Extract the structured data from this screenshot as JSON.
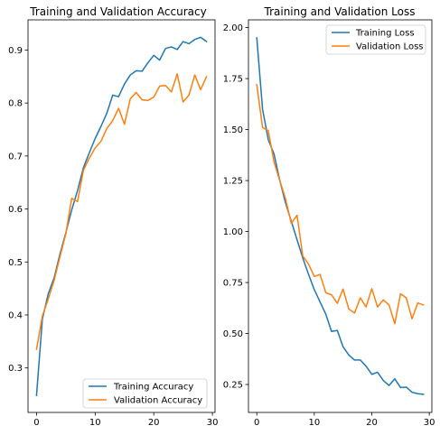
{
  "chart_data": [
    {
      "type": "line",
      "title": "Training and Validation Accuracy",
      "xlabel": "",
      "ylabel": "",
      "xlim": [
        -1.45,
        30.45
      ],
      "ylim": [
        0.216,
        0.957
      ],
      "xticks": [
        0,
        10,
        20,
        30
      ],
      "yticks": [
        0.3,
        0.4,
        0.5,
        0.6,
        0.7,
        0.8,
        0.9
      ],
      "ytick_labels": [
        "0.3",
        "0.4",
        "0.5",
        "0.6",
        "0.7",
        "0.8",
        "0.9"
      ],
      "grid": false,
      "legend_position": "lower-right",
      "x": [
        0,
        1,
        2,
        3,
        4,
        5,
        6,
        7,
        8,
        9,
        10,
        11,
        12,
        13,
        14,
        15,
        16,
        17,
        18,
        19,
        20,
        21,
        22,
        23,
        24,
        25,
        26,
        27,
        28,
        29
      ],
      "series": [
        {
          "name": "Training Accuracy",
          "color": "#1f77b4",
          "values": [
            0.248,
            0.392,
            0.44,
            0.47,
            0.515,
            0.555,
            0.598,
            0.635,
            0.678,
            0.706,
            0.733,
            0.756,
            0.781,
            0.815,
            0.812,
            0.836,
            0.853,
            0.861,
            0.86,
            0.876,
            0.89,
            0.881,
            0.903,
            0.906,
            0.901,
            0.916,
            0.912,
            0.92,
            0.924,
            0.916
          ]
        },
        {
          "name": "Validation Accuracy",
          "color": "#ff7f0e",
          "values": [
            0.335,
            0.398,
            0.43,
            0.465,
            0.51,
            0.553,
            0.62,
            0.614,
            0.673,
            0.696,
            0.715,
            0.728,
            0.752,
            0.767,
            0.79,
            0.76,
            0.808,
            0.82,
            0.806,
            0.805,
            0.811,
            0.832,
            0.833,
            0.821,
            0.855,
            0.802,
            0.815,
            0.853,
            0.825,
            0.85
          ]
        }
      ]
    },
    {
      "type": "line",
      "title": "Training and Validation Loss",
      "xlabel": "",
      "ylabel": "",
      "xlim": [
        -1.45,
        30.45
      ],
      "ylim": [
        0.113,
        2.038
      ],
      "xticks": [
        0,
        10,
        20,
        30
      ],
      "yticks": [
        0.25,
        0.5,
        0.75,
        1.0,
        1.25,
        1.5,
        1.75,
        2.0
      ],
      "ytick_labels": [
        "0.25",
        "0.50",
        "0.75",
        "1.00",
        "1.25",
        "1.50",
        "1.75",
        "2.00"
      ],
      "grid": false,
      "legend_position": "upper-right",
      "x": [
        0,
        1,
        2,
        3,
        4,
        5,
        6,
        7,
        8,
        9,
        10,
        11,
        12,
        13,
        14,
        15,
        16,
        17,
        18,
        19,
        20,
        21,
        22,
        23,
        24,
        25,
        26,
        27,
        28,
        29
      ],
      "series": [
        {
          "name": "Training Loss",
          "color": "#1f77b4",
          "values": [
            1.95,
            1.6,
            1.45,
            1.38,
            1.25,
            1.14,
            1.05,
            0.96,
            0.87,
            0.79,
            0.715,
            0.655,
            0.595,
            0.51,
            0.515,
            0.435,
            0.395,
            0.37,
            0.37,
            0.34,
            0.3,
            0.31,
            0.27,
            0.245,
            0.278,
            0.235,
            0.237,
            0.212,
            0.205,
            0.202
          ]
        },
        {
          "name": "Validation Loss",
          "color": "#ff7f0e",
          "values": [
            1.72,
            1.51,
            1.495,
            1.34,
            1.25,
            1.16,
            1.04,
            1.08,
            0.88,
            0.84,
            0.78,
            0.79,
            0.7,
            0.69,
            0.648,
            0.718,
            0.62,
            0.6,
            0.675,
            0.63,
            0.72,
            0.63,
            0.665,
            0.64,
            0.548,
            0.695,
            0.675,
            0.572,
            0.65,
            0.64
          ]
        }
      ]
    }
  ]
}
